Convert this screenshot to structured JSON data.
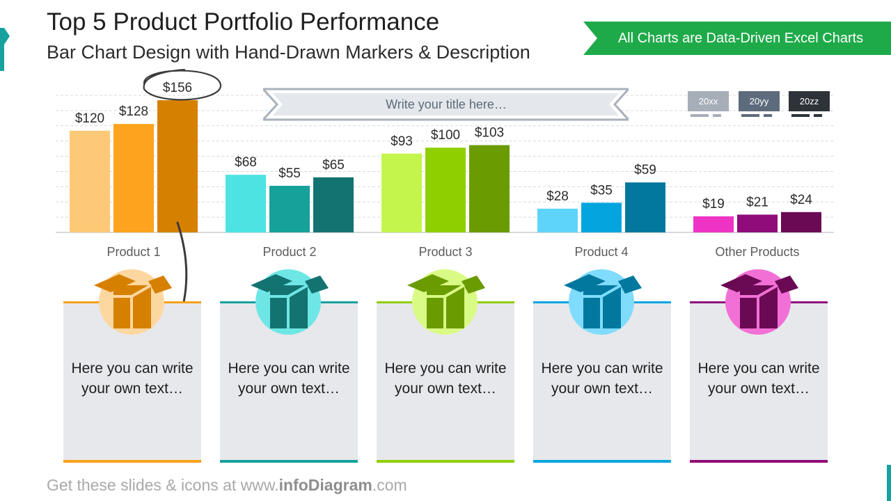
{
  "header": {
    "title": "Top 5 Product Portfolio Performance",
    "subtitle": "Bar Chart Design with Hand-Drawn Markers & Description",
    "banner": "All Charts are Data-Driven Excel Charts"
  },
  "chart_data": {
    "type": "bar",
    "title": "Write your title here…",
    "categories": [
      "Product 1",
      "Product 2",
      "Product 3",
      "Product 4",
      "Other Products"
    ],
    "series": [
      {
        "name": "20xx",
        "values": [
          120,
          68,
          93,
          28,
          19
        ]
      },
      {
        "name": "20yy",
        "values": [
          128,
          55,
          100,
          35,
          21
        ]
      },
      {
        "name": "20zz",
        "values": [
          156,
          65,
          103,
          59,
          24
        ]
      }
    ],
    "data_labels": [
      [
        "$120",
        "$128",
        "$156"
      ],
      [
        "$68",
        "$55",
        "$65"
      ],
      [
        "$93",
        "$100",
        "$103"
      ],
      [
        "$28",
        "$35",
        "$59"
      ],
      [
        "$19",
        "$21",
        "$24"
      ]
    ],
    "colors": [
      [
        "#fec977",
        "#fea31d",
        "#d68000"
      ],
      [
        "#4de3e3",
        "#16a19b",
        "#137371"
      ],
      [
        "#c4f54c",
        "#8fcf00",
        "#6a9b00"
      ],
      [
        "#5ed4fb",
        "#04a5df",
        "#03789f"
      ],
      [
        "#ef34c5",
        "#900c7a",
        "#6a0a54"
      ]
    ],
    "legend_colors": [
      "#a6aeb8",
      "#5d6b7c",
      "#2d3339"
    ],
    "highlight": {
      "category": "Product 1",
      "series": "20zz",
      "marker": "hand-drawn circle and arrow"
    },
    "ylim": [
      0,
      170
    ],
    "grid": true,
    "legend": "top-right"
  },
  "cards": [
    {
      "text": "Here you can write your own text…",
      "accent": "#f7a21b",
      "circle": "#fdd7a0",
      "icon": "#d68000"
    },
    {
      "text": "Here you can write your own text…",
      "accent": "#16a19b",
      "circle": "#6fe6e6",
      "icon": "#137371"
    },
    {
      "text": "Here you can write your own text…",
      "accent": "#8fcf00",
      "circle": "#d9fb86",
      "icon": "#6a9b00"
    },
    {
      "text": "Here you can write your own text…",
      "accent": "#04a5df",
      "circle": "#7fdcfc",
      "icon": "#03789f"
    },
    {
      "text": "Here you can write your own text…",
      "accent": "#900c7a",
      "circle": "#f270d6",
      "icon": "#6a0a54"
    }
  ],
  "footer": {
    "prefix": "Get these slides & icons at www.",
    "brand": "infoDiagram",
    "suffix": ".com"
  }
}
